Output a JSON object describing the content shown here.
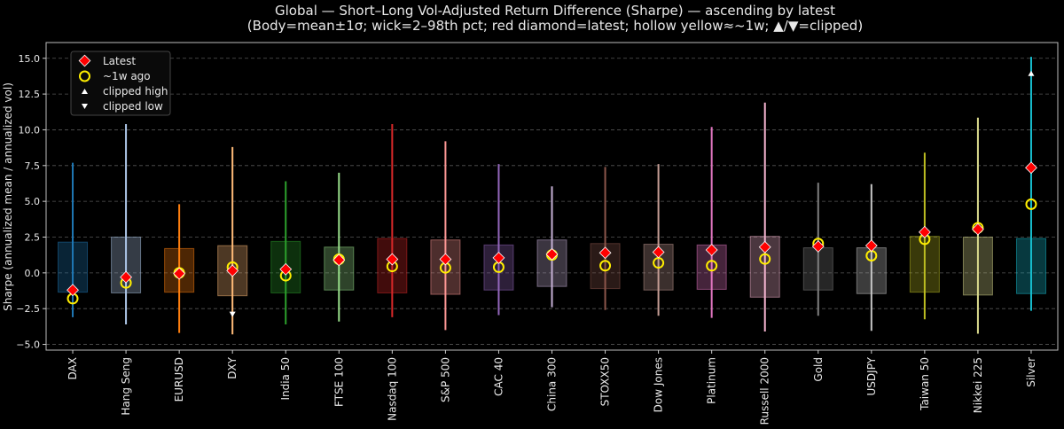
{
  "chart_data": {
    "type": "box-range",
    "title": "Global — Short–Long Vol-Adjusted Return Difference (Sharpe) — ascending by latest",
    "subtitle": "(Body=mean±1σ; wick=2–98th pct; red diamond=latest; hollow yellow≈~1w; ▲/▼=clipped)",
    "xlabel": "",
    "ylabel": "Sharpe (annualized mean / annualized vol)",
    "ylim": [
      -5.4,
      16.1
    ],
    "yticks": [
      -5.0,
      -2.5,
      0.0,
      2.5,
      5.0,
      7.5,
      10.0,
      12.5,
      15.0
    ],
    "ytick_labels": [
      "−5.0",
      "−2.5",
      "0.0",
      "2.5",
      "5.0",
      "7.5",
      "10.0",
      "12.5",
      "15.0"
    ],
    "grid": "horizontal dashed",
    "legend": {
      "placement": "top-left",
      "entries": [
        {
          "label": "Latest",
          "marker": "red diamond"
        },
        {
          "label": "~1w ago",
          "marker": "hollow yellow circle"
        },
        {
          "label": "clipped high",
          "marker": "white up triangle"
        },
        {
          "label": "clipped low",
          "marker": "white down triangle"
        }
      ]
    },
    "categories": [
      "DAX",
      "Hang Seng",
      "EURUSD",
      "DXY",
      "India 50",
      "FTSE 100",
      "Nasdaq 100",
      "S&P 500",
      "CAC 40",
      "China 300",
      "STOXX50",
      "Dow Jones",
      "Platinum",
      "Russell 2000",
      "Gold",
      "USDJPY",
      "Taiwan 50",
      "Nikkei 225",
      "Silver"
    ],
    "colors": [
      "#1f77b4",
      "#aec7e8",
      "#ff7f0e",
      "#ffbb78",
      "#2ca02c",
      "#98df8a",
      "#d62728",
      "#ff9896",
      "#9467bd",
      "#c5b0d5",
      "#8c564b",
      "#c49c94",
      "#e377c2",
      "#f7b6d2",
      "#7f7f7f",
      "#c7c7c7",
      "#bcbd22",
      "#dbdb8d",
      "#17becf"
    ],
    "box_high": [
      2.15,
      2.5,
      1.7,
      1.9,
      2.2,
      1.8,
      2.4,
      2.3,
      1.95,
      2.3,
      2.05,
      2.0,
      1.95,
      2.55,
      1.75,
      1.75,
      2.55,
      2.5,
      2.4
    ],
    "box_low": [
      -1.35,
      -1.4,
      -1.35,
      -1.6,
      -1.4,
      -1.2,
      -1.4,
      -1.5,
      -1.2,
      -0.95,
      -1.1,
      -1.2,
      -1.15,
      -1.7,
      -1.2,
      -1.45,
      -1.35,
      -1.55,
      -1.45
    ],
    "wick_high": [
      7.7,
      10.4,
      4.8,
      8.8,
      6.4,
      7.0,
      10.4,
      9.2,
      7.6,
      6.05,
      7.4,
      7.6,
      10.2,
      11.9,
      6.3,
      6.2,
      8.4,
      10.85,
      15.1
    ],
    "wick_low": [
      -3.1,
      -3.6,
      -4.2,
      -4.3,
      -3.6,
      -3.4,
      -3.1,
      -4.0,
      -2.95,
      -2.4,
      -2.6,
      -3.0,
      -3.15,
      -4.1,
      -3.0,
      -4.05,
      -3.25,
      -4.25,
      -2.65
    ],
    "latest": [
      -1.2,
      -0.3,
      -0.05,
      0.15,
      0.25,
      0.9,
      0.95,
      0.95,
      1.05,
      1.3,
      1.4,
      1.45,
      1.6,
      1.8,
      1.85,
      1.9,
      2.85,
      3.05,
      7.35
    ],
    "week_ago": [
      -1.8,
      -0.7,
      0.0,
      0.4,
      -0.2,
      0.95,
      0.45,
      0.35,
      0.4,
      1.25,
      0.5,
      0.7,
      0.5,
      0.97,
      2.05,
      1.2,
      2.35,
      3.15,
      4.8
    ],
    "clipped_high": [
      {
        "category": "Silver",
        "value": 13.95
      }
    ],
    "clipped_low": [
      {
        "category": "DXY",
        "value": -2.9
      }
    ]
  }
}
